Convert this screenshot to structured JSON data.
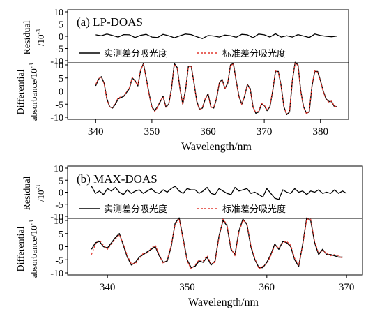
{
  "chart_data": [
    {
      "type": "line",
      "title": "(a) LP-DOAS",
      "xlabel": "Wavelength/nm",
      "xlim": [
        335,
        385
      ],
      "xticks": [
        340,
        350,
        360,
        370,
        380
      ],
      "residual": {
        "ylabel_line1": "Residual",
        "ylabel_line2": "/10",
        "ylabel_exp": "-3",
        "ylim": [
          -10,
          10
        ],
        "yticks": [
          10,
          5,
          0,
          -5,
          -10
        ],
        "x": [
          340,
          341,
          342,
          343,
          344,
          345,
          346,
          347,
          348,
          349,
          350,
          351,
          352,
          353,
          354,
          355,
          356,
          357,
          358,
          359,
          360,
          361,
          362,
          363,
          364,
          365,
          366,
          367,
          368,
          369,
          370,
          371,
          372,
          373,
          374,
          375,
          376,
          377,
          378,
          379,
          380,
          381,
          382,
          383
        ],
        "y": [
          0.6,
          0.2,
          0.9,
          0.3,
          -0.3,
          0.7,
          0.6,
          -0.5,
          0.4,
          0.8,
          -0.3,
          -0.5,
          0.8,
          0.2,
          -0.6,
          0.2,
          0.9,
          0.7,
          -0.2,
          -0.9,
          0.3,
          0.1,
          -0.3,
          0.5,
          0.2,
          -0.4,
          0.8,
          0.6,
          -0.6,
          0.9,
          0.6,
          -0.3,
          1.0,
          -0.3,
          0.2,
          -0.3,
          0.7,
          0.1,
          -0.5,
          0.9,
          0.3,
          0.0,
          -0.2,
          0.1
        ]
      },
      "main": {
        "ylabel_line1": "Differential",
        "ylabel_line2": "absorbance/10",
        "ylabel_exp": "-3",
        "ylim": [
          -10,
          10
        ],
        "yticks": [
          10,
          5,
          0,
          -5,
          -10
        ],
        "legend": "top",
        "series": [
          {
            "name": "实测差分吸光度",
            "color": "#000000",
            "style": "solid",
            "x": [
              340,
              340.5,
              341,
              341.5,
              342,
              342.5,
              343,
              343.5,
              344,
              345,
              346,
              346.5,
              347,
              347.5,
              348,
              348.5,
              349,
              349.5,
              350,
              350.5,
              351,
              351.5,
              352,
              352.5,
              353,
              353.5,
              354,
              354.5,
              355,
              355.5,
              356,
              356.5,
              357,
              357.5,
              358,
              358.5,
              359,
              359.5,
              360,
              360.5,
              361,
              361.5,
              362,
              362.5,
              363,
              363.5,
              364,
              364.5,
              365,
              365.5,
              366,
              366.5,
              367,
              367.5,
              368,
              368.5,
              369,
              369.5,
              370,
              370.5,
              371,
              371.5,
              372,
              372.5,
              373,
              373.5,
              374,
              374.5,
              375,
              375.5,
              376,
              376.5,
              377,
              377.5,
              378,
              378.5,
              379,
              379.5,
              380,
              380.5,
              381,
              381.5,
              382,
              382.5,
              383
            ],
            "y": [
              2,
              4.5,
              5.5,
              3,
              -3,
              -6,
              -6.5,
              -5,
              -3,
              -2,
              1,
              5,
              4,
              2,
              8,
              10.5,
              5,
              -1,
              -6,
              -7.5,
              -6,
              -4,
              -2,
              -6,
              -5,
              1,
              10.5,
              9,
              1,
              -5,
              0.5,
              9.5,
              9.5,
              3,
              -4,
              -7,
              -6.5,
              -3,
              -1,
              -6,
              -6.5,
              -3,
              3,
              4.5,
              1,
              3,
              10,
              10.5,
              4,
              -2,
              -5,
              -2,
              2.5,
              1,
              -6,
              -8.5,
              -8,
              -5,
              -5.5,
              -7.5,
              -6,
              0,
              7.5,
              7.5,
              2,
              -6,
              -9,
              -8,
              4,
              11,
              10,
              0,
              -6,
              -8.5,
              -8,
              2,
              7.5,
              7.5,
              4,
              0,
              -3,
              -4,
              -4,
              -6,
              -6
            ]
          },
          {
            "name": "标准差分吸光度",
            "color": "#e0352b",
            "style": "dashed",
            "x": [
              340,
              340.5,
              341,
              341.5,
              342,
              342.5,
              343,
              343.5,
              344,
              345,
              346,
              346.5,
              347,
              347.5,
              348,
              348.5,
              349,
              349.5,
              350,
              350.5,
              351,
              351.5,
              352,
              352.5,
              353,
              353.5,
              354,
              354.5,
              355,
              355.5,
              356,
              356.5,
              357,
              357.5,
              358,
              358.5,
              359,
              359.5,
              360,
              360.5,
              361,
              361.5,
              362,
              362.5,
              363,
              363.5,
              364,
              364.5,
              365,
              365.5,
              366,
              366.5,
              367,
              367.5,
              368,
              368.5,
              369,
              369.5,
              370,
              370.5,
              371,
              371.5,
              372,
              372.5,
              373,
              373.5,
              374,
              374.5,
              375,
              375.5,
              376,
              376.5,
              377,
              377.5,
              378,
              378.5,
              379,
              379.5,
              380,
              380.5,
              381,
              381.5,
              382,
              382.5,
              383
            ],
            "y": [
              2.5,
              4.8,
              5.2,
              2.8,
              -3.2,
              -6.2,
              -6.2,
              -4.6,
              -2.6,
              -1.8,
              1.3,
              5.2,
              3.7,
              2.3,
              8.2,
              10.2,
              4.6,
              -1.3,
              -6.3,
              -7.8,
              -6.3,
              -3.7,
              -2.3,
              -6.2,
              -5.3,
              1.2,
              10.2,
              8.7,
              0.7,
              -5.3,
              0.8,
              9.2,
              9.7,
              2.7,
              -4.2,
              -7.3,
              -6.2,
              -2.8,
              -1.2,
              -6.3,
              -6.2,
              -2.7,
              3.2,
              4.2,
              0.8,
              3.3,
              9.7,
              10.3,
              3.7,
              -2.3,
              -5.2,
              -1.7,
              2.3,
              0.7,
              -6.3,
              -8.2,
              -7.7,
              -4.7,
              -5.3,
              -7.2,
              -5.7,
              0.3,
              7.7,
              7.2,
              1.7,
              -6.2,
              -8.8,
              -7.7,
              4.3,
              10.7,
              9.7,
              -0.3,
              -6.2,
              -8.7,
              -7.7,
              2.3,
              7.7,
              7.2,
              3.8,
              -0.2,
              -3.2,
              -4.2,
              -3.8,
              -5.8,
              -5.8
            ]
          }
        ]
      }
    },
    {
      "type": "line",
      "title": "(b) MAX-DOAS",
      "xlabel": "Wavelength/nm",
      "xlim": [
        335,
        372
      ],
      "xticks": [
        340,
        350,
        360,
        370
      ],
      "residual": {
        "ylabel_line1": "Residual",
        "ylabel_line2": "/10",
        "ylabel_exp": "-3",
        "ylim": [
          -10,
          10
        ],
        "yticks": [
          10,
          5,
          0,
          -5,
          -10
        ],
        "x": [
          338,
          338.5,
          339,
          339.5,
          340,
          340.5,
          341,
          341.5,
          342,
          342.5,
          343,
          343.5,
          344,
          344.5,
          345,
          345.5,
          346,
          346.5,
          347,
          347.5,
          348,
          348.5,
          349,
          349.5,
          350,
          350.5,
          351,
          351.5,
          352,
          352.5,
          353,
          353.5,
          354,
          354.5,
          355,
          355.5,
          356,
          356.5,
          357,
          357.5,
          358,
          358.5,
          359,
          359.5,
          360,
          360.5,
          361,
          361.5,
          362,
          362.5,
          363,
          363.5,
          364,
          364.5,
          365,
          365.5,
          366,
          366.5,
          367,
          367.5,
          368,
          368.5,
          369,
          369.5,
          370
        ],
        "y": [
          2.5,
          -0.5,
          0.5,
          -1.0,
          1.5,
          0.5,
          2.0,
          0.0,
          -1.0,
          1.0,
          -0.5,
          0.5,
          1.0,
          -0.5,
          0.5,
          1.5,
          0.0,
          -0.5,
          1.0,
          0.0,
          1.5,
          2.5,
          0.5,
          -0.5,
          1.5,
          1.0,
          1.0,
          -0.5,
          0.5,
          2.0,
          -0.5,
          -1.0,
          1.5,
          0.5,
          -0.5,
          -1.0,
          2.0,
          0.5,
          1.0,
          1.5,
          -0.5,
          0.0,
          -1.0,
          -2.0,
          1.5,
          -0.5,
          -2.5,
          -3.0,
          1.0,
          0.0,
          -0.5,
          1.5,
          0.0,
          0.5,
          -1.0,
          0.5,
          0.0,
          1.0,
          -0.5,
          0.0,
          -0.5,
          1.0,
          -0.5,
          0.5,
          -0.5
        ]
      },
      "main": {
        "ylabel_line1": "Differential",
        "ylabel_line2": "absorbance/10",
        "ylabel_exp": "-3",
        "ylim": [
          -10,
          10
        ],
        "yticks": [
          10,
          5,
          0,
          -5,
          -10
        ],
        "legend": "top",
        "series": [
          {
            "name": "实测差分吸光度",
            "color": "#000000",
            "style": "solid",
            "x": [
              338,
              338.5,
              339,
              339.5,
              340,
              340.5,
              341,
              341.5,
              342,
              342.5,
              343,
              343.5,
              344,
              344.5,
              345,
              345.5,
              346,
              346.5,
              347,
              347.5,
              348,
              348.5,
              349,
              349.5,
              350,
              350.5,
              351,
              351.5,
              352,
              352.5,
              353,
              353.5,
              354,
              354.5,
              355,
              355.5,
              356,
              356.5,
              357,
              357.5,
              358,
              358.5,
              359,
              359.5,
              360,
              360.5,
              361,
              361.5,
              362,
              362.5,
              363,
              363.5,
              364,
              364.5,
              365,
              365.5,
              366,
              366.5,
              367,
              367.5,
              368,
              368.5,
              369,
              369.5
            ],
            "y": [
              -1,
              1.5,
              2,
              0,
              -0.5,
              1.5,
              3.5,
              5,
              0.5,
              -4,
              -7,
              -6,
              -4,
              -3,
              -2,
              -1,
              0,
              -3.5,
              -6,
              -5.5,
              0,
              9,
              11,
              3,
              -5,
              -8,
              -7.5,
              -5.5,
              -6,
              -4,
              -7,
              -5.5,
              4,
              10,
              8,
              -1,
              -3,
              6,
              10.5,
              8.5,
              0,
              -5,
              -8,
              -8,
              -6,
              -3,
              1,
              -1,
              2,
              1.5,
              0,
              -5,
              -7.5,
              1,
              11,
              10,
              1.5,
              -3,
              -1,
              -3,
              -3,
              -3.5,
              -4,
              -4
            ]
          },
          {
            "name": "标准差分吸光度",
            "color": "#e0352b",
            "style": "dashed",
            "x": [
              338,
              338.5,
              339,
              339.5,
              340,
              340.5,
              341,
              341.5,
              342,
              342.5,
              343,
              343.5,
              344,
              344.5,
              345,
              345.5,
              346,
              346.5,
              347,
              347.5,
              348,
              348.5,
              349,
              349.5,
              350,
              350.5,
              351,
              351.5,
              352,
              352.5,
              353,
              353.5,
              354,
              354.5,
              355,
              355.5,
              356,
              356.5,
              357,
              357.5,
              358,
              358.5,
              359,
              359.5,
              360,
              360.5,
              361,
              361.5,
              362,
              362.5,
              363,
              363.5,
              364,
              364.5,
              365,
              365.5,
              366,
              366.5,
              367,
              367.5,
              368,
              368.5,
              369,
              369.5
            ],
            "y": [
              -3,
              1,
              2.5,
              0.5,
              -1,
              1,
              3,
              4.5,
              1,
              -3.5,
              -6.5,
              -6.5,
              -4.5,
              -2.5,
              -2.5,
              -0.5,
              0.5,
              -3,
              -6.5,
              -5,
              0.5,
              8.5,
              10.5,
              2.5,
              -5.5,
              -8.5,
              -7,
              -5,
              -5.5,
              -3.5,
              -6.5,
              -6,
              3.5,
              10.5,
              8.5,
              -0.5,
              -3.5,
              5.5,
              10,
              9,
              0.5,
              -4.5,
              -8.5,
              -7.5,
              -6.5,
              -3.5,
              0.5,
              -0.5,
              1.5,
              2,
              0.5,
              -4.5,
              -7,
              0.5,
              10.5,
              10.5,
              2,
              -2.5,
              -1.5,
              -2.5,
              -3.5,
              -3,
              -3.5,
              -4.5
            ]
          }
        ]
      }
    }
  ]
}
